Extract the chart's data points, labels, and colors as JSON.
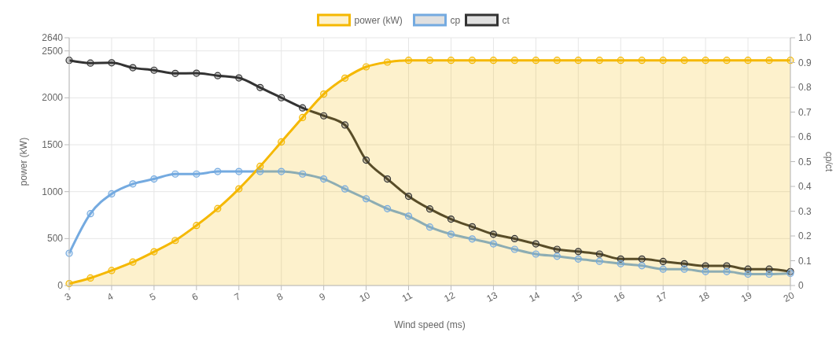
{
  "chart_data": {
    "type": "line",
    "xlabel": "Wind speed (ms)",
    "ylabel": "power (kW)",
    "y2label": "cp/ct",
    "x": [
      3,
      3.5,
      4,
      4.5,
      5,
      5.5,
      6,
      6.5,
      7,
      7.5,
      8,
      8.5,
      9,
      9.5,
      10,
      10.5,
      11,
      11.5,
      12,
      12.5,
      13,
      13.5,
      14,
      14.5,
      15,
      15.5,
      16,
      16.5,
      17,
      17.5,
      18,
      18.5,
      19,
      19.5,
      20
    ],
    "series": [
      {
        "name": "power (kW)",
        "type": "area",
        "color": "#f5b800",
        "values": [
          20,
          80,
          160,
          250,
          360,
          480,
          640,
          820,
          1030,
          1270,
          1530,
          1790,
          2040,
          2210,
          2330,
          2380,
          2400,
          2400,
          2400,
          2400,
          2400,
          2400,
          2400,
          2400,
          2400,
          2400,
          2400,
          2400,
          2400,
          2400,
          2400,
          2400,
          2400,
          2400,
          2400
        ]
      },
      {
        "name": "cp",
        "axis": "y2",
        "color": "#74aae0",
        "values": [
          0.13,
          0.29,
          0.37,
          0.41,
          0.43,
          0.45,
          0.45,
          0.46,
          0.46,
          0.46,
          0.46,
          0.45,
          0.43,
          0.39,
          0.35,
          0.31,
          0.28,
          0.236,
          0.207,
          0.188,
          0.168,
          0.146,
          0.127,
          0.118,
          0.107,
          0.098,
          0.088,
          0.08,
          0.066,
          0.066,
          0.056,
          0.056,
          0.046,
          0.046,
          0.049
        ]
      },
      {
        "name": "ct",
        "axis": "y2",
        "color": "#333333",
        "values": [
          0.909,
          0.898,
          0.899,
          0.879,
          0.869,
          0.856,
          0.857,
          0.847,
          0.838,
          0.799,
          0.758,
          0.717,
          0.685,
          0.648,
          0.506,
          0.43,
          0.36,
          0.309,
          0.268,
          0.237,
          0.207,
          0.189,
          0.168,
          0.146,
          0.137,
          0.127,
          0.107,
          0.107,
          0.097,
          0.088,
          0.079,
          0.079,
          0.066,
          0.066,
          0.056
        ]
      }
    ],
    "xlim": [
      3,
      20
    ],
    "xticks": [
      3,
      4,
      5,
      6,
      7,
      8,
      9,
      10,
      11,
      12,
      13,
      14,
      15,
      16,
      17,
      18,
      19,
      20
    ],
    "ylim": [
      0,
      2640
    ],
    "yticks": [
      0,
      500,
      1000,
      1500,
      2000,
      2500,
      2640
    ],
    "y2lim": [
      0,
      1
    ],
    "y2ticks": [
      0,
      0.1,
      0.2,
      0.3,
      0.4,
      0.5,
      0.6,
      0.7,
      0.8,
      0.9,
      {
        "value": 1,
        "label": "1.0"
      }
    ],
    "grid": true,
    "legend": "top",
    "marker": "circle",
    "line_style": "solid"
  }
}
